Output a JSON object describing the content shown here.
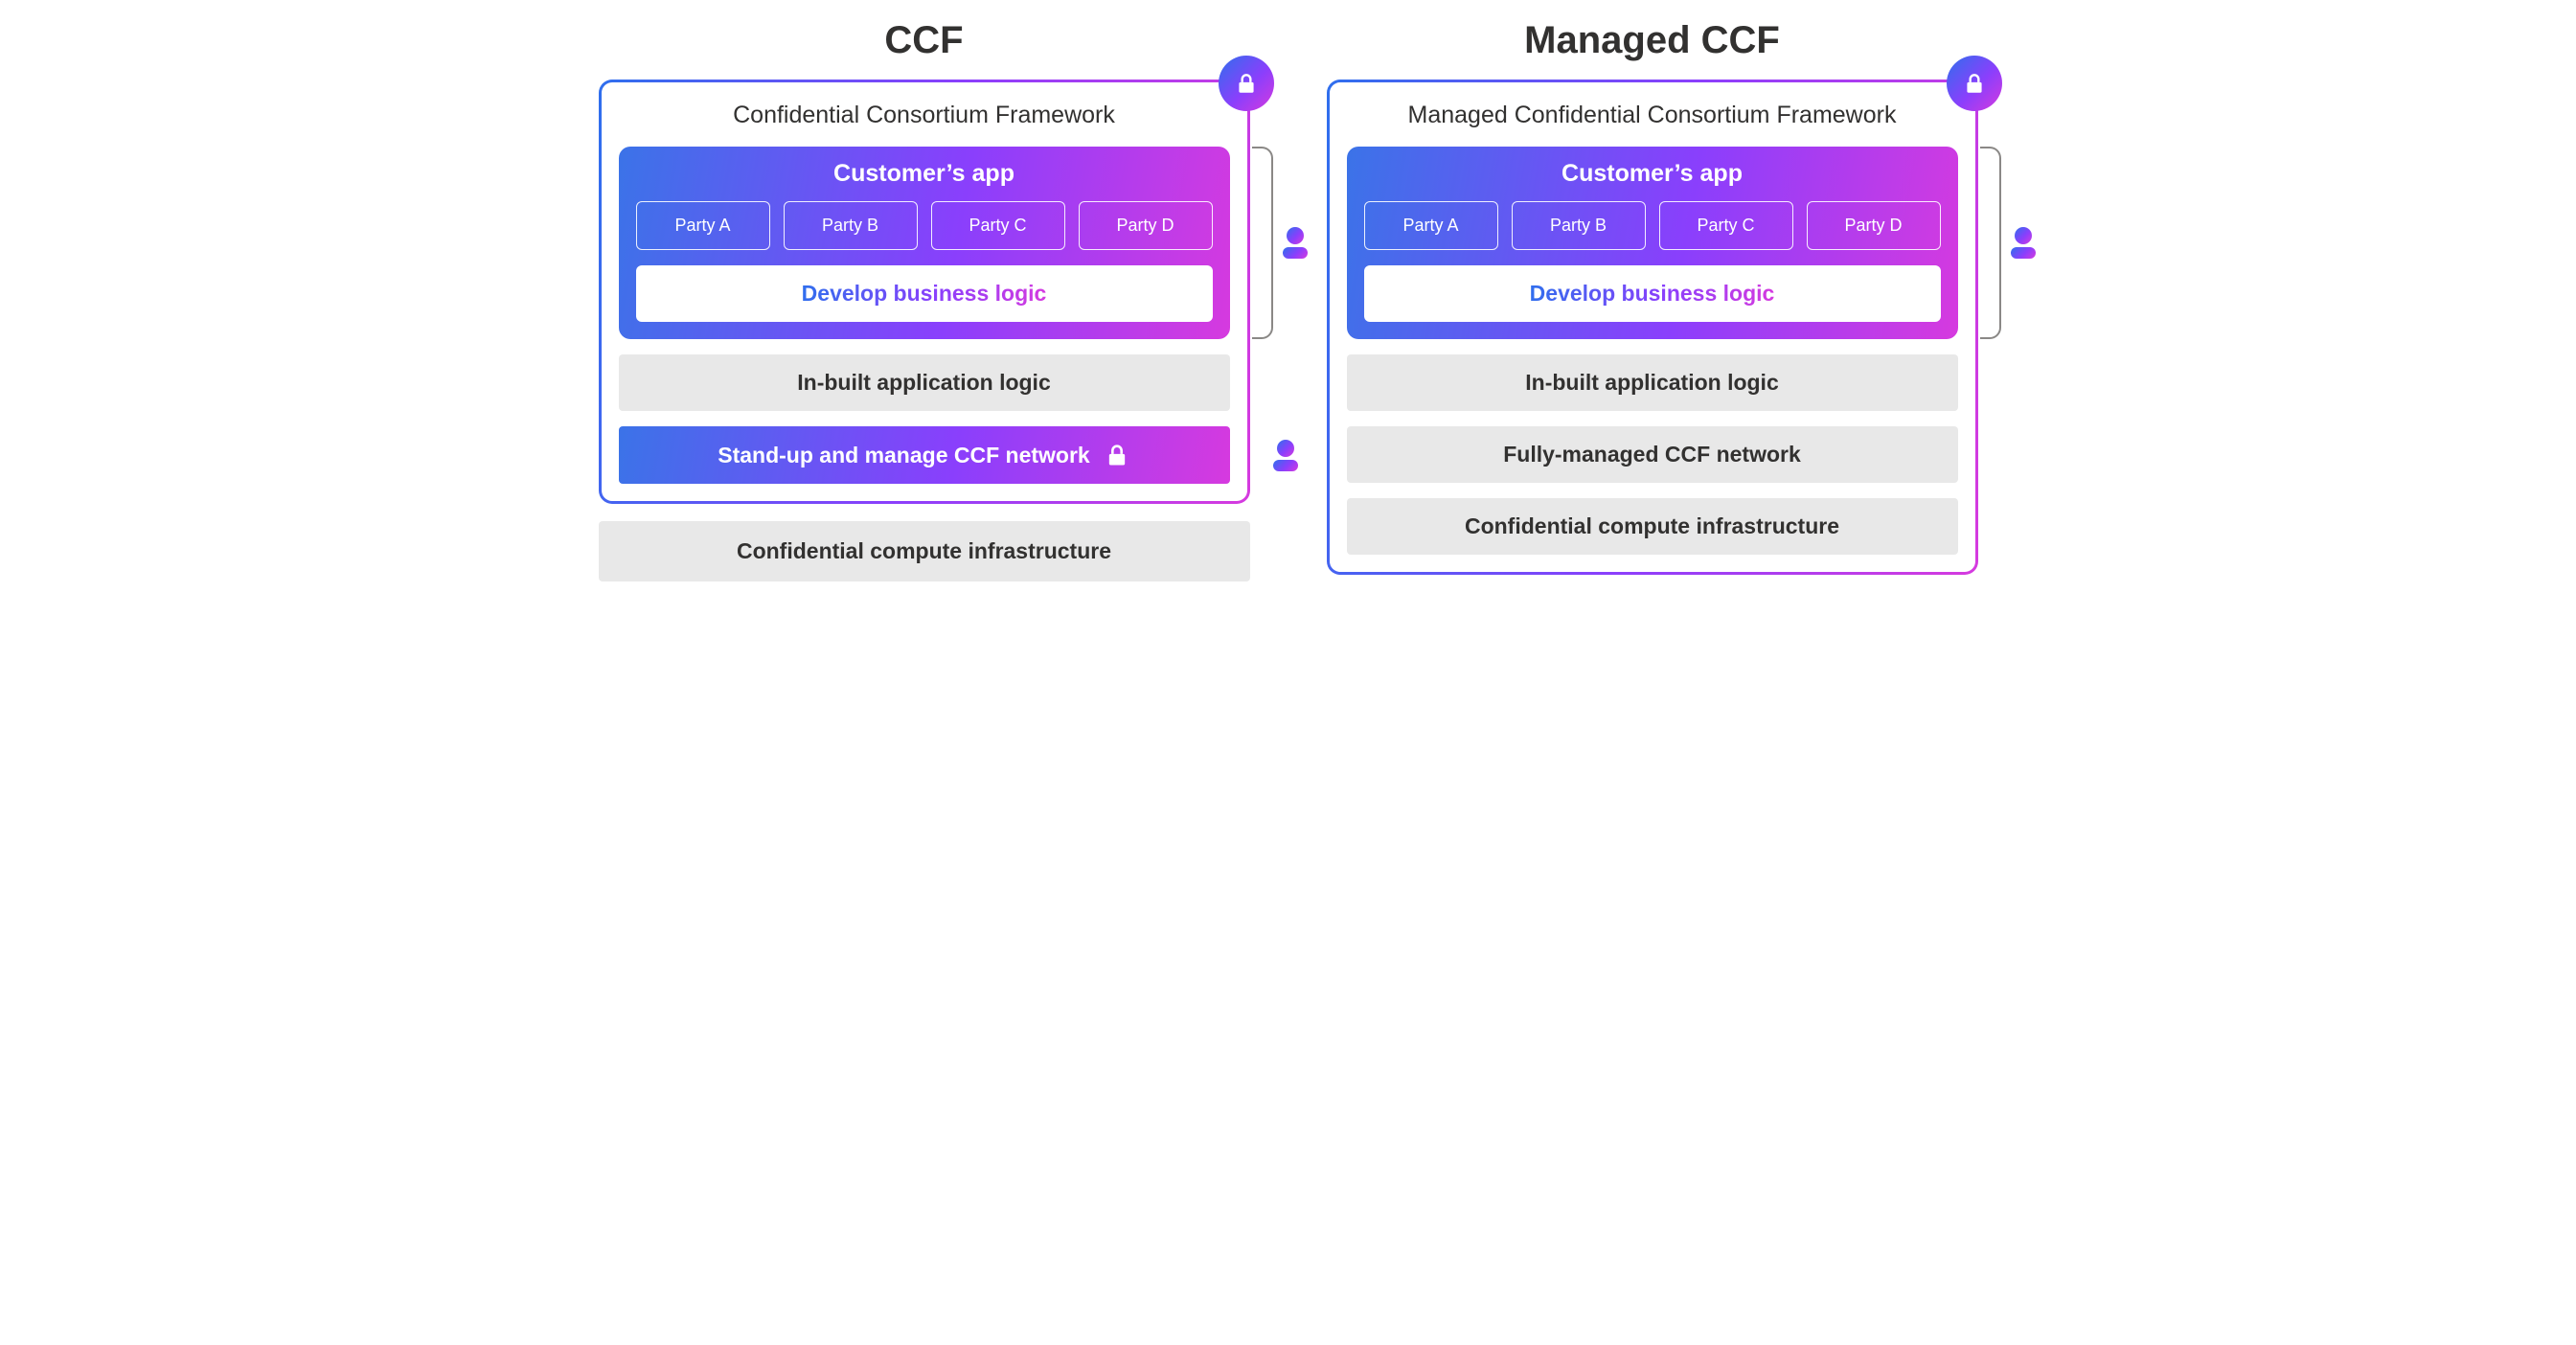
{
  "colors": {
    "grad_start": "#3b73e8",
    "grad_mid": "#8a3ffc",
    "grad_end": "#d63adf",
    "grey_layer_bg": "#e8e8e8",
    "text_dark": "#323130",
    "white": "#ffffff",
    "bracket": "#8a8886"
  },
  "typography": {
    "title_fontsize_pt": 30,
    "framework_title_fontsize_pt": 19,
    "app_title_fontsize_pt": 19,
    "party_fontsize_pt": 14,
    "layer_fontsize_pt": 17
  },
  "left": {
    "title": "CCF",
    "framework_title": "Confidential Consortium Framework",
    "app_title": "Customer’s app",
    "parties": [
      "Party A",
      "Party B",
      "Party C",
      "Party D"
    ],
    "develop_label": "Develop business logic",
    "layers_inside": [
      {
        "text": "In-built application logic",
        "style": "grey"
      },
      {
        "text": "Stand-up and manage CCF network",
        "style": "gradient",
        "lock": true
      }
    ],
    "layer_outside": "Confidential compute infrastructure",
    "annotations": [
      {
        "span": "app",
        "icon": "user"
      },
      {
        "span": "network",
        "icon": "user"
      }
    ]
  },
  "right": {
    "title": "Managed CCF",
    "framework_title": "Managed Confidential Consortium Framework",
    "app_title": "Customer’s app",
    "parties": [
      "Party A",
      "Party B",
      "Party C",
      "Party D"
    ],
    "develop_label": "Develop business logic",
    "layers_inside": [
      {
        "text": "In-built application logic",
        "style": "grey"
      },
      {
        "text": "Fully-managed CCF network",
        "style": "grey"
      },
      {
        "text": "Confidential compute infrastructure",
        "style": "grey"
      }
    ],
    "layer_outside": null,
    "annotations": [
      {
        "span": "app",
        "icon": "user"
      }
    ]
  }
}
